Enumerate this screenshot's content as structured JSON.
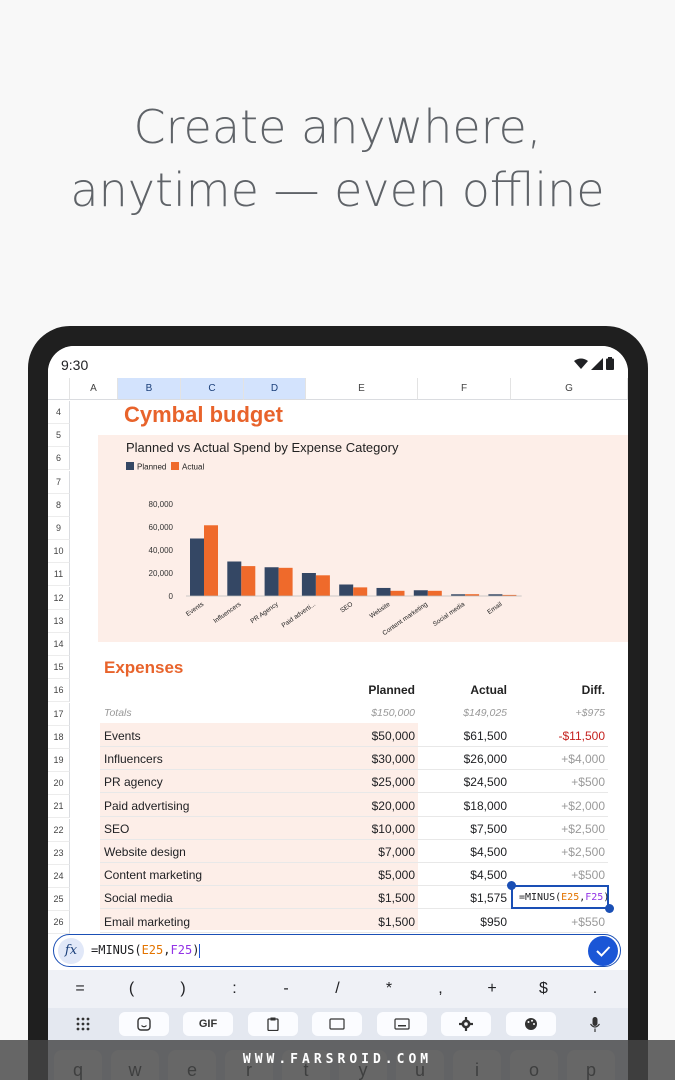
{
  "headline": {
    "line1": "Create anywhere,",
    "line2": "anytime — even offline"
  },
  "status": {
    "time": "9:30"
  },
  "columns": [
    "A",
    "B",
    "C",
    "D",
    "E",
    "F",
    "G"
  ],
  "rows": [
    "4",
    "5",
    "6",
    "7",
    "8",
    "9",
    "10",
    "11",
    "12",
    "13",
    "14",
    "15",
    "16",
    "17",
    "18",
    "19",
    "20",
    "21",
    "22",
    "23",
    "24",
    "25",
    "26"
  ],
  "sheet": {
    "title": "Cymbal budget"
  },
  "chart_data": {
    "type": "bar",
    "title": "Planned vs Actual Spend by Expense Category",
    "categories": [
      "Events",
      "Influencers",
      "PR Agency",
      "Paid adverti...",
      "SEO",
      "Website",
      "Content marketing",
      "Social media",
      "Email"
    ],
    "series": [
      {
        "name": "Planned",
        "color": "#344764",
        "values": [
          50000,
          30000,
          25000,
          20000,
          10000,
          7000,
          5000,
          1500,
          1500
        ]
      },
      {
        "name": "Actual",
        "color": "#ef6a2b",
        "values": [
          61500,
          26000,
          24500,
          18000,
          7500,
          4500,
          4500,
          1575,
          950
        ]
      }
    ],
    "yticks": [
      "80,000",
      "60,000",
      "40,000",
      "20,000",
      "0"
    ],
    "ylim": [
      0,
      80000
    ],
    "legend": "top-left"
  },
  "expenses": {
    "title": "Expenses",
    "headers": {
      "planned": "Planned",
      "actual": "Actual",
      "diff": "Diff."
    },
    "totals": {
      "label": "Totals",
      "planned": "$150,000",
      "actual": "$149,025",
      "diff": "+$975"
    },
    "items": [
      {
        "label": "Events",
        "planned": "$50,000",
        "actual": "$61,500",
        "diff": "-$11,500"
      },
      {
        "label": "Influencers",
        "planned": "$30,000",
        "actual": "$26,000",
        "diff": "+$4,000"
      },
      {
        "label": "PR agency",
        "planned": "$25,000",
        "actual": "$24,500",
        "diff": "+$500"
      },
      {
        "label": "Paid advertising",
        "planned": "$20,000",
        "actual": "$18,000",
        "diff": "+$2,000"
      },
      {
        "label": "SEO",
        "planned": "$10,000",
        "actual": "$7,500",
        "diff": "+$2,500"
      },
      {
        "label": "Website design",
        "planned": "$7,000",
        "actual": "$4,500",
        "diff": "+$2,500"
      },
      {
        "label": "Content marketing",
        "planned": "$5,000",
        "actual": "$4,500",
        "diff": "+$500"
      },
      {
        "label": "Social media",
        "planned": "$1,500",
        "actual": "$1,575",
        "diff": "=MINUS(E25,F25)"
      },
      {
        "label": "Email marketing",
        "planned": "$1,500",
        "actual": "$950",
        "diff": "+$550"
      }
    ]
  },
  "formula_bar": {
    "fx": "fx",
    "formula_prefix": "=MINUS(",
    "ref1": "E25",
    "sep": ",",
    "ref2": "F25",
    "formula_suffix": ")"
  },
  "selected_cell": {
    "prefix": "=MINUS(",
    "ref1": "E25",
    "sep": ",",
    "ref2": "F25",
    "suffix": ")"
  },
  "symbol_keys": [
    "=",
    "(",
    ")",
    ":",
    "-",
    "/",
    "*",
    ",",
    "+",
    "$",
    "."
  ],
  "toolbar": {
    "gif_label": "GIF"
  },
  "qwerty_keys": [
    "q",
    "w",
    "e",
    "r",
    "t",
    "y",
    "u",
    "i",
    "o",
    "p"
  ],
  "watermark": "WWW.FARSROID.COM"
}
